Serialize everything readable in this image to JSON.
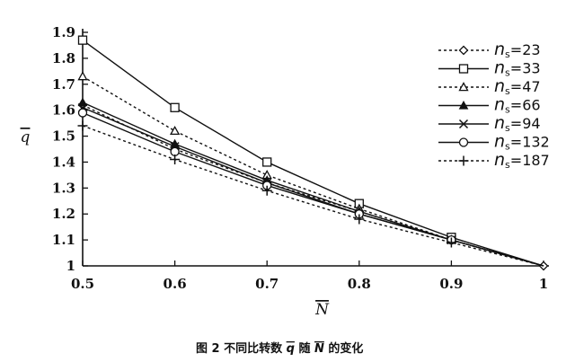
{
  "chart_data": {
    "type": "line",
    "title": "",
    "xlabel": "N",
    "ylabel": "q",
    "xlim": [
      0.5,
      1.0
    ],
    "ylim": [
      1.0,
      1.9
    ],
    "x_ticks": [
      "0.5",
      "0.6",
      "0.7",
      "0.8",
      "0.9",
      "1"
    ],
    "y_ticks": [
      "1",
      "1.1",
      "1.2",
      "1.3",
      "1.4",
      "1.5",
      "1.6",
      "1.7",
      "1.8",
      "1.9"
    ],
    "grid": false,
    "legend_position": "top-right",
    "x": [
      0.5,
      0.6,
      0.7,
      0.8,
      0.9,
      1.0
    ],
    "series": [
      {
        "name": "n",
        "subscript": "s",
        "suffix": "=23",
        "marker": "diamond",
        "dash": "dotted",
        "values": [
          1.62,
          1.45,
          1.32,
          1.21,
          1.1,
          1.0
        ]
      },
      {
        "name": "n",
        "subscript": "s",
        "suffix": "=33",
        "marker": "square",
        "dash": "solid",
        "values": [
          1.87,
          1.61,
          1.4,
          1.24,
          1.11,
          1.0
        ]
      },
      {
        "name": "n",
        "subscript": "s",
        "suffix": "=47",
        "marker": "triangle",
        "dash": "dotted",
        "values": [
          1.73,
          1.52,
          1.35,
          1.22,
          1.1,
          1.0
        ]
      },
      {
        "name": "n",
        "subscript": "s",
        "suffix": "=66",
        "marker": "filled-triangle",
        "dash": "solid",
        "values": [
          1.63,
          1.47,
          1.33,
          1.21,
          1.1,
          1.0
        ]
      },
      {
        "name": "n",
        "subscript": "s",
        "suffix": "=94",
        "marker": "x",
        "dash": "solid",
        "values": [
          1.61,
          1.46,
          1.32,
          1.2,
          1.1,
          1.0
        ]
      },
      {
        "name": "n",
        "subscript": "s",
        "suffix": "=132",
        "marker": "circle",
        "dash": "solid",
        "values": [
          1.59,
          1.44,
          1.31,
          1.2,
          1.1,
          1.0
        ]
      },
      {
        "name": "n",
        "subscript": "s",
        "suffix": "=187",
        "marker": "plus",
        "dash": "dotted",
        "values": [
          1.54,
          1.41,
          1.29,
          1.18,
          1.09,
          1.0
        ]
      }
    ]
  },
  "caption": {
    "prefix": "图 2   不同比转数 ",
    "q": "q",
    "middle": " 随 ",
    "n": "N",
    "suffix": " 的变化"
  }
}
